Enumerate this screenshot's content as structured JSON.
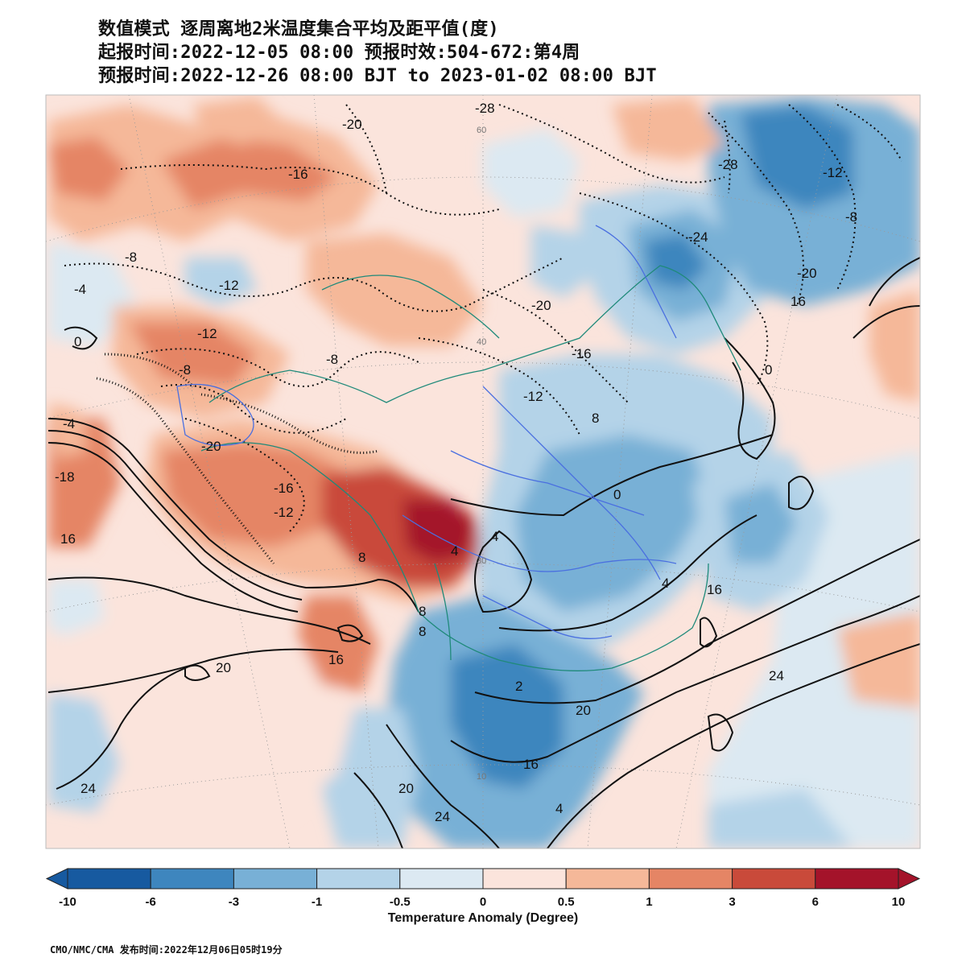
{
  "title": {
    "line1": "数值模式 逐周离地2米温度集合平均及距平值(度)",
    "line2": "起报时间:2022-12-05 08:00 预报时效:504-672:第4周",
    "line3": "预报时间:2022-12-26 08:00 BJT to 2023-01-02 08:00 BJT"
  },
  "legend": {
    "title": "Temperature Anomaly (Degree)",
    "ticks": [
      "-10",
      "-6",
      "-3",
      "-1",
      "-0.5",
      "0",
      "0.5",
      "1",
      "3",
      "6",
      "10"
    ],
    "colors": [
      "#175aa0",
      "#3e86be",
      "#78b0d6",
      "#b4d3e8",
      "#dce9f2",
      "#fbe4dc",
      "#f5b899",
      "#e58565",
      "#c94a3a",
      "#a4132a"
    ]
  },
  "contour_labels": [
    "-28",
    "-20",
    "60",
    "-16",
    "-28",
    "-12",
    "-8",
    "-24",
    "-8",
    "-4",
    "-12",
    "-20",
    "16",
    "-20",
    "0",
    "-12",
    "-8",
    "40",
    "-16",
    "-8",
    "-12",
    "0",
    "-4",
    "8",
    "-18",
    "-20",
    "-16",
    "-12",
    "0",
    "16",
    "4",
    "8",
    "30",
    "4",
    "16",
    "4",
    "8",
    "20",
    "16",
    "2",
    "24",
    "20",
    "16",
    "20",
    "24",
    "10",
    "24",
    "8",
    "4"
  ],
  "footer": "CMO/NMC/CMA 发布时间:2022年12月06日05时19分"
}
